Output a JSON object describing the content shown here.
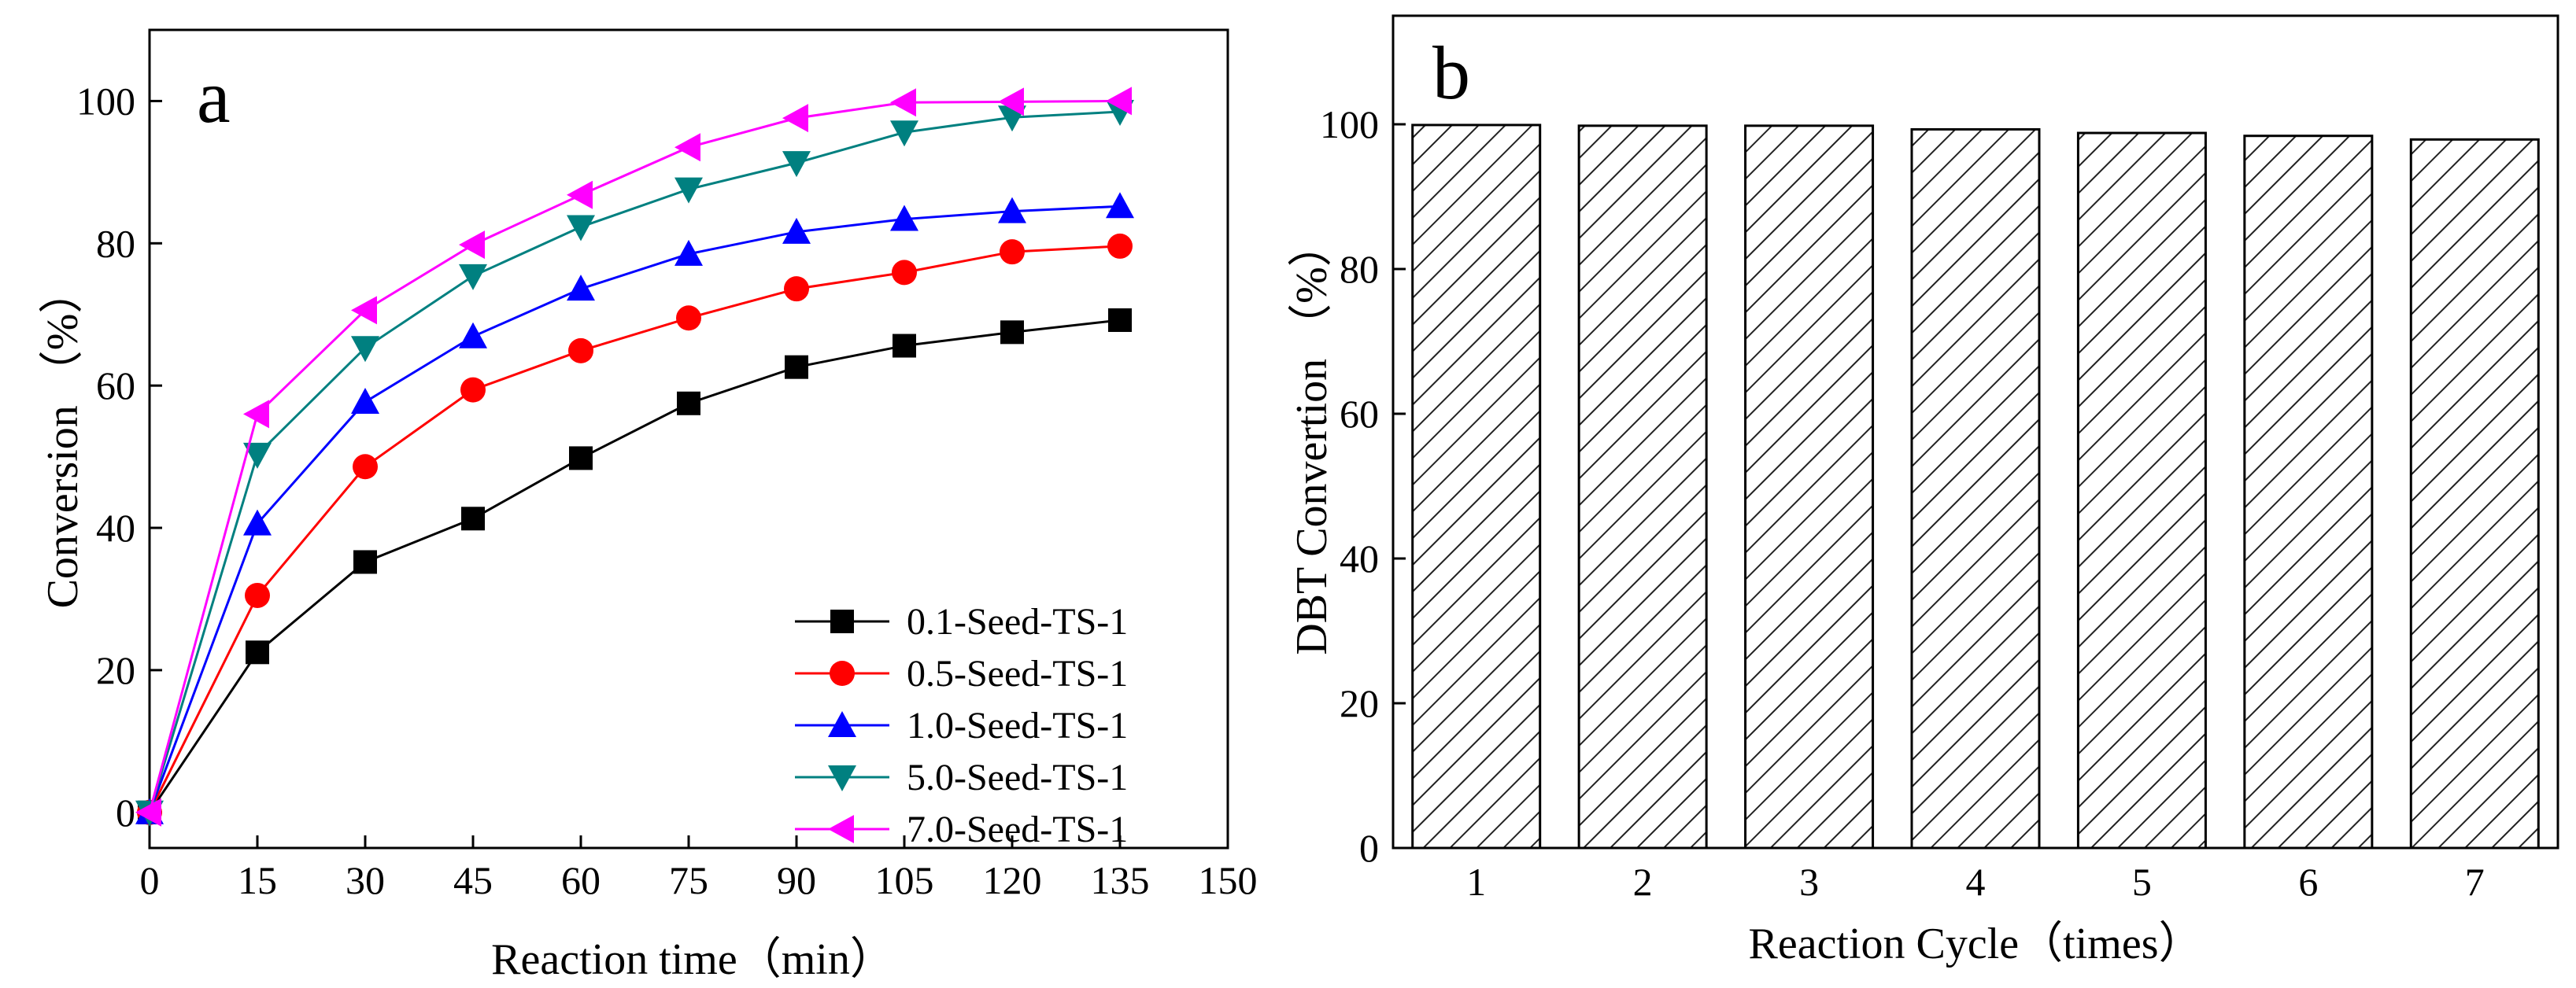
{
  "chart_data": [
    {
      "type": "line",
      "panel_label": "a",
      "xlabel": "Reaction time（min）",
      "ylabel": "Conversion （%）",
      "xlim": [
        0,
        150
      ],
      "ylim": [
        -5,
        110
      ],
      "x_ticks": [
        0,
        15,
        30,
        45,
        60,
        75,
        90,
        105,
        120,
        135,
        150
      ],
      "y_ticks": [
        0,
        20,
        40,
        60,
        80,
        100
      ],
      "x": [
        0,
        15,
        30,
        45,
        60,
        75,
        90,
        105,
        120,
        135
      ],
      "legend_position": "bottom-right",
      "series": [
        {
          "name": "0.1-Seed-TS-1",
          "color": "#000000",
          "marker": "square",
          "values": [
            0,
            22.5,
            35.2,
            41.3,
            49.8,
            57.5,
            62.6,
            65.6,
            67.5,
            69.2
          ]
        },
        {
          "name": "0.5-Seed-TS-1",
          "color": "#ff0000",
          "marker": "circle",
          "values": [
            0,
            30.5,
            48.6,
            59.4,
            64.9,
            69.5,
            73.6,
            75.9,
            78.8,
            79.6
          ]
        },
        {
          "name": "1.0-Seed-TS-1",
          "color": "#0000ff",
          "marker": "triangle-up",
          "values": [
            0,
            40.6,
            57.7,
            66.9,
            73.6,
            78.5,
            81.6,
            83.4,
            84.5,
            85.2
          ]
        },
        {
          "name": "5.0-Seed-TS-1",
          "color": "#008080",
          "marker": "triangle-down",
          "values": [
            0,
            50.3,
            65.3,
            75.4,
            82.3,
            87.6,
            91.3,
            95.6,
            97.7,
            98.5
          ]
        },
        {
          "name": "7.0-Seed-TS-1",
          "color": "#ff00ff",
          "marker": "triangle-left",
          "values": [
            0,
            56.0,
            70.6,
            79.8,
            86.8,
            93.5,
            97.6,
            99.8,
            99.9,
            100
          ]
        }
      ]
    },
    {
      "type": "bar",
      "panel_label": "b",
      "xlabel": "Reaction Cycle（times）",
      "ylabel": "DBT Convertion （%）",
      "ylim": [
        0,
        115
      ],
      "y_ticks": [
        0,
        20,
        40,
        60,
        80,
        100
      ],
      "categories": [
        "1",
        "2",
        "3",
        "4",
        "5",
        "6",
        "7"
      ],
      "values": [
        99.9,
        99.8,
        99.8,
        99.3,
        98.8,
        98.4,
        97.9
      ],
      "bar_fill": "hatched"
    }
  ]
}
